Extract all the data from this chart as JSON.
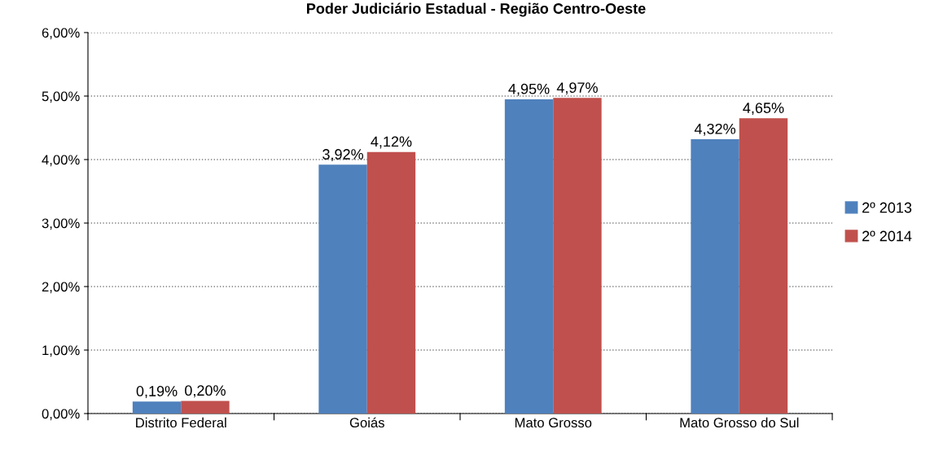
{
  "chart_data": {
    "type": "bar",
    "title": "Poder Judiciário Estadual - Região Centro-Oeste",
    "categories": [
      "Distrito Federal",
      "Goiás",
      "Mato Grosso",
      "Mato Grosso do Sul"
    ],
    "series": [
      {
        "name": "2º 2013",
        "color": "#4f81bd",
        "values": [
          0.19,
          3.92,
          4.95,
          4.32
        ],
        "value_labels": [
          "0,19%",
          "3,92%",
          "4,95%",
          "4,32%"
        ]
      },
      {
        "name": "2º 2014",
        "color": "#c0504d",
        "values": [
          0.2,
          4.12,
          4.97,
          4.65
        ],
        "value_labels": [
          "0,20%",
          "4,12%",
          "4,97%",
          "4,65%"
        ]
      }
    ],
    "ylim": [
      0,
      6
    ],
    "yticks": [
      {
        "value": 0,
        "label": "0,00%"
      },
      {
        "value": 1,
        "label": "1,00%"
      },
      {
        "value": 2,
        "label": "2,00%"
      },
      {
        "value": 3,
        "label": "3,00%"
      },
      {
        "value": 4,
        "label": "4,00%"
      },
      {
        "value": 5,
        "label": "5,00%"
      },
      {
        "value": 6,
        "label": "6,00%"
      }
    ],
    "grid": "y",
    "legend": "right"
  }
}
